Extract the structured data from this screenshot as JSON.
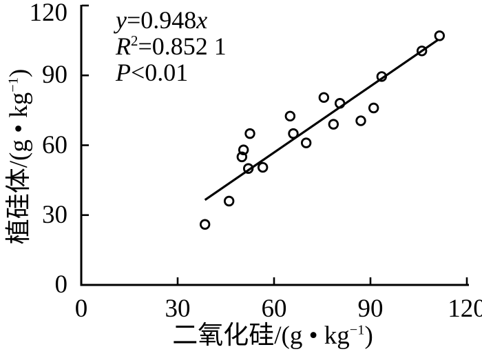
{
  "figure": {
    "background": "#ffffff",
    "foreground": "#000000"
  },
  "axis_labels": {
    "y_main": "植硅体/(g • kg",
    "y_sup": "−1",
    "y_close": ")",
    "x_main": "二氧化硅/(g • kg",
    "x_sup": "−1",
    "x_close": ")"
  },
  "annotation": {
    "l1_var": "y",
    "l1_rest": "=0.948",
    "l1_var2": "x",
    "l2_var": "R",
    "l2_sup": "2",
    "l2_rest": "=0.852 1",
    "l3_var": "P",
    "l3_rest": "<0.01"
  },
  "chart_data": {
    "type": "scatter",
    "title": "",
    "xlabel": "二氧化硅/(g•kg⁻¹)",
    "ylabel": "植硅体/(g•kg⁻¹)",
    "xlim": [
      0,
      120
    ],
    "ylim": [
      0,
      120
    ],
    "xticks": [
      0,
      30,
      60,
      90,
      120
    ],
    "yticks": [
      0,
      30,
      60,
      90,
      120
    ],
    "grid": false,
    "legend": "none",
    "marker": "open-circle",
    "point_color": "#000000",
    "line_color": "#000000",
    "points": [
      [
        38.5,
        26
      ],
      [
        46,
        36
      ],
      [
        50,
        55
      ],
      [
        50.5,
        58
      ],
      [
        52,
        50
      ],
      [
        52.5,
        65
      ],
      [
        56.5,
        50.5
      ],
      [
        65,
        72.5
      ],
      [
        66,
        65
      ],
      [
        70,
        61
      ],
      [
        75.5,
        80.5
      ],
      [
        78.5,
        69
      ],
      [
        80.5,
        78
      ],
      [
        87,
        70.5
      ],
      [
        91,
        76
      ],
      [
        93.5,
        89.5
      ],
      [
        106,
        100.5
      ],
      [
        111.5,
        107
      ]
    ],
    "fit_line": {
      "equation": "y=0.948x",
      "slope": 0.948,
      "intercept": 0,
      "r_squared": "0.852 1",
      "p_value": "P<0.01",
      "x_start": 38.5,
      "x_end": 111
    }
  }
}
